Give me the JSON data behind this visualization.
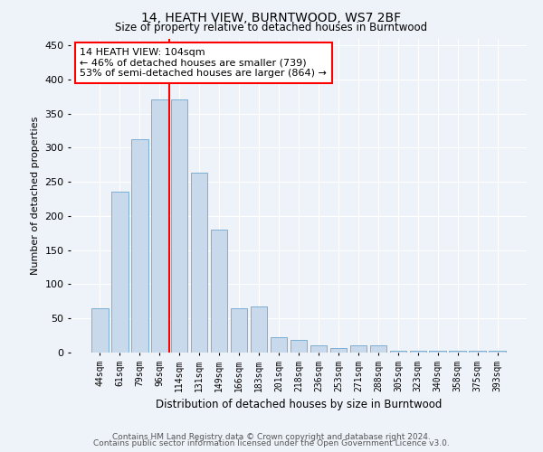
{
  "title1": "14, HEATH VIEW, BURNTWOOD, WS7 2BF",
  "title2": "Size of property relative to detached houses in Burntwood",
  "xlabel": "Distribution of detached houses by size in Burntwood",
  "ylabel": "Number of detached properties",
  "categories": [
    "44sqm",
    "61sqm",
    "79sqm",
    "96sqm",
    "114sqm",
    "131sqm",
    "149sqm",
    "166sqm",
    "183sqm",
    "201sqm",
    "218sqm",
    "236sqm",
    "253sqm",
    "271sqm",
    "288sqm",
    "305sqm",
    "323sqm",
    "340sqm",
    "358sqm",
    "375sqm",
    "393sqm"
  ],
  "values": [
    65,
    235,
    312,
    370,
    370,
    263,
    180,
    65,
    68,
    22,
    18,
    10,
    7,
    10,
    10,
    3,
    3,
    3,
    3,
    2,
    2
  ],
  "bar_color": "#c9d9ec",
  "bar_edge_color": "#7bafd4",
  "vline_color": "red",
  "annotation_text": "14 HEATH VIEW: 104sqm\n← 46% of detached houses are smaller (739)\n53% of semi-detached houses are larger (864) →",
  "annotation_box_color": "white",
  "annotation_box_edge_color": "red",
  "bg_color": "#eef2f9",
  "grid_color": "white",
  "ylim": [
    0,
    460
  ],
  "footer1": "Contains HM Land Registry data © Crown copyright and database right 2024.",
  "footer2": "Contains public sector information licensed under the Open Government Licence v3.0."
}
